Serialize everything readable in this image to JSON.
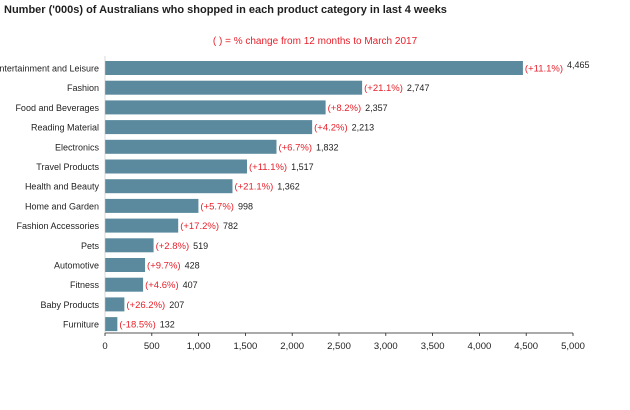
{
  "title": "Number ('000s) of Australians who shopped in each product category in last 4 weeks",
  "subtitle": "( ) = % change from 12 months to March 2017",
  "colors": {
    "bar": "#5b8a9e",
    "change_text": "#e8212b",
    "axis": "#1f1f1f"
  },
  "chart_data": {
    "type": "bar",
    "orientation": "horizontal",
    "title": "Number ('000s) of Australians who shopped in each product category in last 4 weeks",
    "subtitle": "( ) = % change from 12 months to March 2017",
    "xlim": [
      0,
      5000
    ],
    "xticks": [
      0,
      500,
      1000,
      1500,
      2000,
      2500,
      3000,
      3500,
      4000,
      4500,
      5000
    ],
    "xtick_labels": [
      "0",
      "500",
      "1,000",
      "1,500",
      "2,000",
      "2,500",
      "3,000",
      "3,500",
      "4,000",
      "4,500",
      "5,000"
    ],
    "grid": false,
    "categories": [
      "Entertainment and Leisure",
      "Fashion",
      "Food and Beverages",
      "Reading Material",
      "Electronics",
      "Travel Products",
      "Health and Beauty",
      "Home and Garden",
      "Fashion Accessories",
      "Pets",
      "Automotive",
      "Fitness",
      "Baby Products",
      "Furniture"
    ],
    "values": [
      4465,
      2747,
      2357,
      2213,
      1832,
      1517,
      1362,
      998,
      782,
      519,
      428,
      407,
      207,
      132
    ],
    "value_labels": [
      "4,465",
      "2,747",
      "2,357",
      "2,213",
      "1,832",
      "1,517",
      "1,362",
      "998",
      "782",
      "519",
      "428",
      "407",
      "207",
      "132"
    ],
    "changes": [
      "(+11.1%)",
      "(+21.1%)",
      "(+8.2%)",
      "(+4.2%)",
      "(+6.7%)",
      "(+11.1%)",
      "(+21.1%)",
      "(+5.7%)",
      "(+17.2%)",
      "(+2.8%)",
      "(+9.7%)",
      "(+4.6%)",
      "(+26.2%)",
      "(-18.5%)"
    ]
  }
}
